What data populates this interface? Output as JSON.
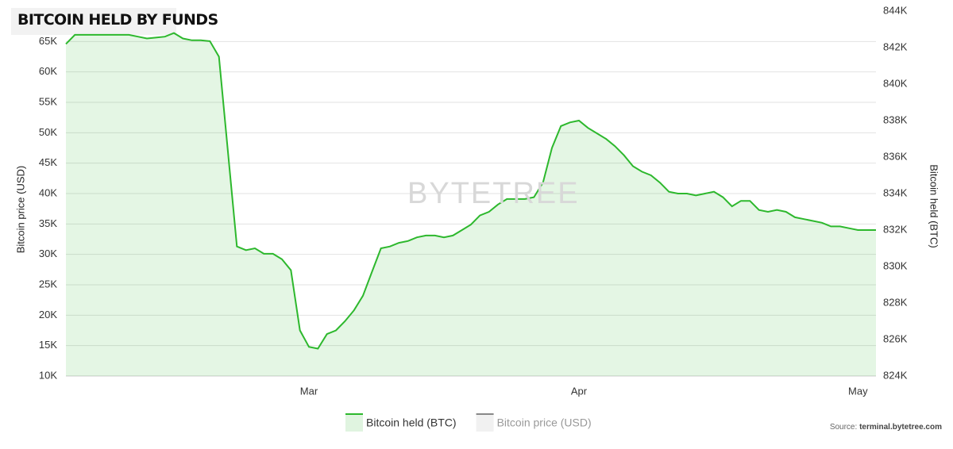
{
  "chart_data": {
    "type": "line",
    "title": "BITCOIN HELD BY FUNDS",
    "watermark": "BYTETREE",
    "source_label": "Source:",
    "source_url": "terminal.bytetree.com",
    "y_label": "Bitcoin price (USD)",
    "y2_label": "Bitcoin held (BTC)",
    "categories": [
      null,
      null,
      null,
      null,
      null,
      null,
      null,
      null,
      null,
      null,
      null,
      null,
      null,
      null,
      null,
      null,
      null,
      null,
      null,
      null,
      null,
      null,
      null,
      null,
      null,
      null,
      null,
      "Mar",
      null,
      null,
      null,
      null,
      null,
      null,
      null,
      null,
      null,
      null,
      null,
      null,
      null,
      null,
      null,
      null,
      null,
      null,
      null,
      null,
      null,
      null,
      null,
      null,
      null,
      null,
      null,
      null,
      null,
      "Apr",
      null,
      null,
      null,
      null,
      null,
      null,
      null,
      null,
      null,
      null,
      null,
      null,
      null,
      null,
      null,
      null,
      null,
      null,
      null,
      null,
      null,
      null,
      null,
      null,
      null,
      null,
      null,
      null,
      null,
      null,
      "May",
      null,
      null
    ],
    "series": [
      {
        "name": "Bitcoin held (BTC)",
        "color": "#2db82d",
        "axis": "y2",
        "visible": true,
        "values": [
          842200,
          842700,
          842700,
          842700,
          842700,
          842700,
          842700,
          842700,
          842600,
          842500,
          842550,
          842600,
          842800,
          842500,
          842400,
          842400,
          842350,
          841500,
          836300,
          831100,
          830900,
          831000,
          830700,
          830700,
          830400,
          829800,
          826500,
          825600,
          825500,
          826300,
          826500,
          827000,
          827600,
          828400,
          829700,
          831000,
          831100,
          831300,
          831400,
          831600,
          831700,
          831700,
          831600,
          831700,
          832000,
          832300,
          832800,
          833000,
          833400,
          833700,
          833700,
          833700,
          833800,
          834600,
          836500,
          837700,
          837900,
          838000,
          837600,
          837300,
          837000,
          836600,
          836100,
          835500,
          835200,
          835000,
          834600,
          834100,
          834000,
          834000,
          833900,
          834000,
          834100,
          833800,
          833300,
          833600,
          833600,
          833100,
          833000,
          833100,
          833000,
          832700,
          832600,
          832500,
          832400,
          832200,
          832200,
          832100,
          832000,
          832000,
          832000
        ]
      },
      {
        "name": "Bitcoin price (USD)",
        "color": "#888888",
        "axis": "y",
        "visible": false,
        "values": [
          null,
          null,
          null,
          null,
          null,
          null,
          null,
          null,
          null,
          null,
          null,
          null,
          null,
          null,
          null,
          null,
          null,
          null,
          null,
          null,
          null,
          null,
          null,
          null,
          null,
          null,
          null,
          null,
          null,
          null,
          null,
          null,
          null,
          null,
          null,
          null,
          null,
          null,
          null,
          null,
          null,
          null,
          null,
          null,
          null,
          null,
          null,
          null,
          null,
          null,
          null,
          null,
          null,
          null,
          null,
          null,
          null,
          null,
          null,
          null,
          null,
          null,
          null,
          null,
          null,
          null,
          null,
          null,
          null,
          null,
          null,
          null,
          null,
          null,
          null,
          null,
          null,
          null,
          null,
          null,
          null,
          null,
          null,
          null,
          null,
          null,
          null,
          null,
          null,
          null,
          null
        ]
      }
    ],
    "ylim": [
      10000,
      70000
    ],
    "yticks": [
      {
        "value": 10000,
        "label": "10K"
      },
      {
        "value": 15000,
        "label": "15K"
      },
      {
        "value": 20000,
        "label": "20K"
      },
      {
        "value": 25000,
        "label": "25K"
      },
      {
        "value": 30000,
        "label": "30K"
      },
      {
        "value": 35000,
        "label": "35K"
      },
      {
        "value": 40000,
        "label": "40K"
      },
      {
        "value": 45000,
        "label": "45K"
      },
      {
        "value": 50000,
        "label": "50K"
      },
      {
        "value": 55000,
        "label": "55K"
      },
      {
        "value": 60000,
        "label": "60K"
      },
      {
        "value": 65000,
        "label": "65K"
      }
    ],
    "y2lim": [
      824000,
      844000
    ],
    "y2ticks": [
      {
        "value": 824000,
        "label": "824K"
      },
      {
        "value": 826000,
        "label": "826K"
      },
      {
        "value": 828000,
        "label": "828K"
      },
      {
        "value": 830000,
        "label": "830K"
      },
      {
        "value": 832000,
        "label": "832K"
      },
      {
        "value": 834000,
        "label": "834K"
      },
      {
        "value": 836000,
        "label": "836K"
      },
      {
        "value": 838000,
        "label": "838K"
      },
      {
        "value": 840000,
        "label": "840K"
      },
      {
        "value": 842000,
        "label": "842K"
      },
      {
        "value": 844000,
        "label": "844K"
      }
    ],
    "grid": true,
    "legend": "bottom"
  }
}
